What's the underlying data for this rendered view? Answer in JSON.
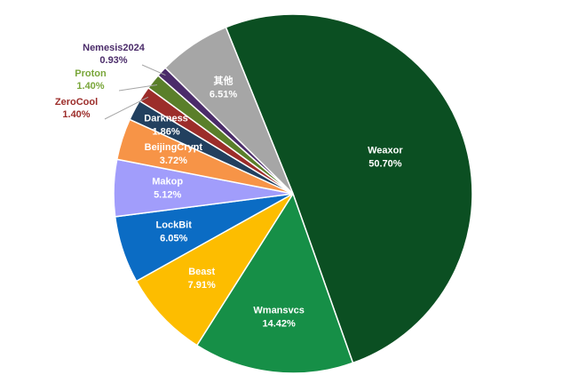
{
  "chart_data": {
    "type": "pie",
    "slices": [
      {
        "label": "Weaxor",
        "value": 50.7,
        "display": "50.70%",
        "color": "#0b4f22",
        "text_color": "#ffffff"
      },
      {
        "label": "Wmansvcs",
        "value": 14.42,
        "display": "14.42%",
        "color": "#168f47",
        "text_color": "#ffffff"
      },
      {
        "label": "Beast",
        "value": 7.91,
        "display": "7.91%",
        "color": "#fdbd00",
        "text_color": "#ffffff"
      },
      {
        "label": "LockBit",
        "value": 6.05,
        "display": "6.05%",
        "color": "#0b6cc4",
        "text_color": "#ffffff"
      },
      {
        "label": "Makop",
        "value": 5.12,
        "display": "5.12%",
        "color": "#a19dfb",
        "text_color": "#ffffff"
      },
      {
        "label": "BeijingCrypt",
        "value": 3.72,
        "display": "3.72%",
        "color": "#f79447",
        "text_color": "#ffffff"
      },
      {
        "label": "Darkness",
        "value": 1.86,
        "display": "1.86%",
        "color": "#22405f",
        "text_color": "#ffffff"
      },
      {
        "label": "ZeroCool",
        "value": 1.4,
        "display": "1.40%",
        "color": "#9c2d2a",
        "text_color": "#9c2d2a"
      },
      {
        "label": "Proton",
        "value": 1.4,
        "display": "1.40%",
        "color": "#5a7f2a",
        "text_color": "#79a63a"
      },
      {
        "label": "Nemesis2024",
        "value": 0.93,
        "display": "0.93%",
        "color": "#4b2c6a",
        "text_color": "#4b2c6a"
      },
      {
        "label": "其他",
        "value": 6.51,
        "display": "6.51%",
        "color": "#a6a6a6",
        "text_color": "#ffffff"
      }
    ],
    "legend": "none"
  }
}
